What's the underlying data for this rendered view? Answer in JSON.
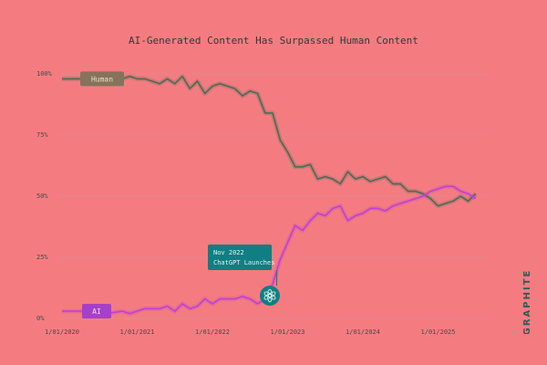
{
  "title": "AI-Generated Content Has Surpassed Human Content",
  "brand": "GRAPHITE",
  "annotation": {
    "line1": "Nov 2022",
    "line2": "ChatGPT Launches",
    "icon": "openai-icon"
  },
  "colors": {
    "background": "#f47c80",
    "human_line": "#4f6a55",
    "ai_line": "#c040d0",
    "human_label_bg": "#85735c",
    "ai_label_bg": "#a640c8",
    "annotation_bg": "#0f7f83"
  },
  "chart_data": {
    "type": "line",
    "title": "AI-Generated Content Has Surpassed Human Content",
    "x_ticks": [
      "1/01/2020",
      "1/01/2021",
      "1/01/2022",
      "1/01/2023",
      "1/01/2024",
      "1/01/2025"
    ],
    "y_ticks": [
      "100%",
      "75%",
      "50%",
      "25%",
      "0%"
    ],
    "ylim": [
      0,
      100
    ],
    "xlim": [
      2020.0,
      2025.6
    ],
    "grid": true,
    "series": [
      {
        "name": "Human",
        "x": [
          2020.0,
          2020.2,
          2020.5,
          2020.6,
          2020.8,
          2020.9,
          2021.0,
          2021.1,
          2021.2,
          2021.3,
          2021.4,
          2021.5,
          2021.6,
          2021.7,
          2021.8,
          2021.9,
          2022.0,
          2022.1,
          2022.3,
          2022.4,
          2022.5,
          2022.6,
          2022.7,
          2022.8,
          2022.9,
          2023.0,
          2023.1,
          2023.2,
          2023.3,
          2023.4,
          2023.5,
          2023.6,
          2023.7,
          2023.8,
          2023.9,
          2024.0,
          2024.1,
          2024.2,
          2024.3,
          2024.4,
          2024.5,
          2024.6,
          2024.7,
          2024.8,
          2024.9,
          2025.0,
          2025.1,
          2025.2,
          2025.3,
          2025.4,
          2025.5
        ],
        "values": [
          98,
          98,
          98,
          99,
          98,
          99,
          98,
          98,
          97,
          96,
          98,
          96,
          99,
          94,
          97,
          92,
          95,
          96,
          94,
          91,
          93,
          92,
          84,
          84,
          73,
          68,
          62,
          62,
          63,
          57,
          58,
          57,
          55,
          60,
          57,
          58,
          56,
          57,
          58,
          55,
          55,
          52,
          52,
          51,
          49,
          46,
          47,
          48,
          50,
          48,
          51
        ]
      },
      {
        "name": "AI",
        "x": [
          2020.0,
          2020.2,
          2020.5,
          2020.6,
          2020.8,
          2020.9,
          2021.0,
          2021.1,
          2021.2,
          2021.3,
          2021.4,
          2021.5,
          2021.6,
          2021.7,
          2021.8,
          2021.9,
          2022.0,
          2022.1,
          2022.3,
          2022.4,
          2022.5,
          2022.6,
          2022.7,
          2022.8,
          2022.9,
          2023.0,
          2023.1,
          2023.2,
          2023.3,
          2023.4,
          2023.5,
          2023.6,
          2023.7,
          2023.8,
          2023.9,
          2024.0,
          2024.1,
          2024.2,
          2024.3,
          2024.4,
          2024.5,
          2024.6,
          2024.7,
          2024.8,
          2024.9,
          2025.0,
          2025.1,
          2025.2,
          2025.3,
          2025.4,
          2025.5
        ],
        "values": [
          3,
          3,
          3,
          2,
          3,
          2,
          3,
          4,
          4,
          4,
          5,
          3,
          6,
          4,
          5,
          8,
          6,
          8,
          8,
          9,
          8,
          6,
          8,
          14,
          24,
          31,
          38,
          36,
          40,
          43,
          42,
          45,
          46,
          40,
          42,
          43,
          45,
          45,
          44,
          46,
          47,
          48,
          49,
          50,
          52,
          53,
          54,
          54,
          52,
          51,
          49
        ]
      }
    ]
  }
}
